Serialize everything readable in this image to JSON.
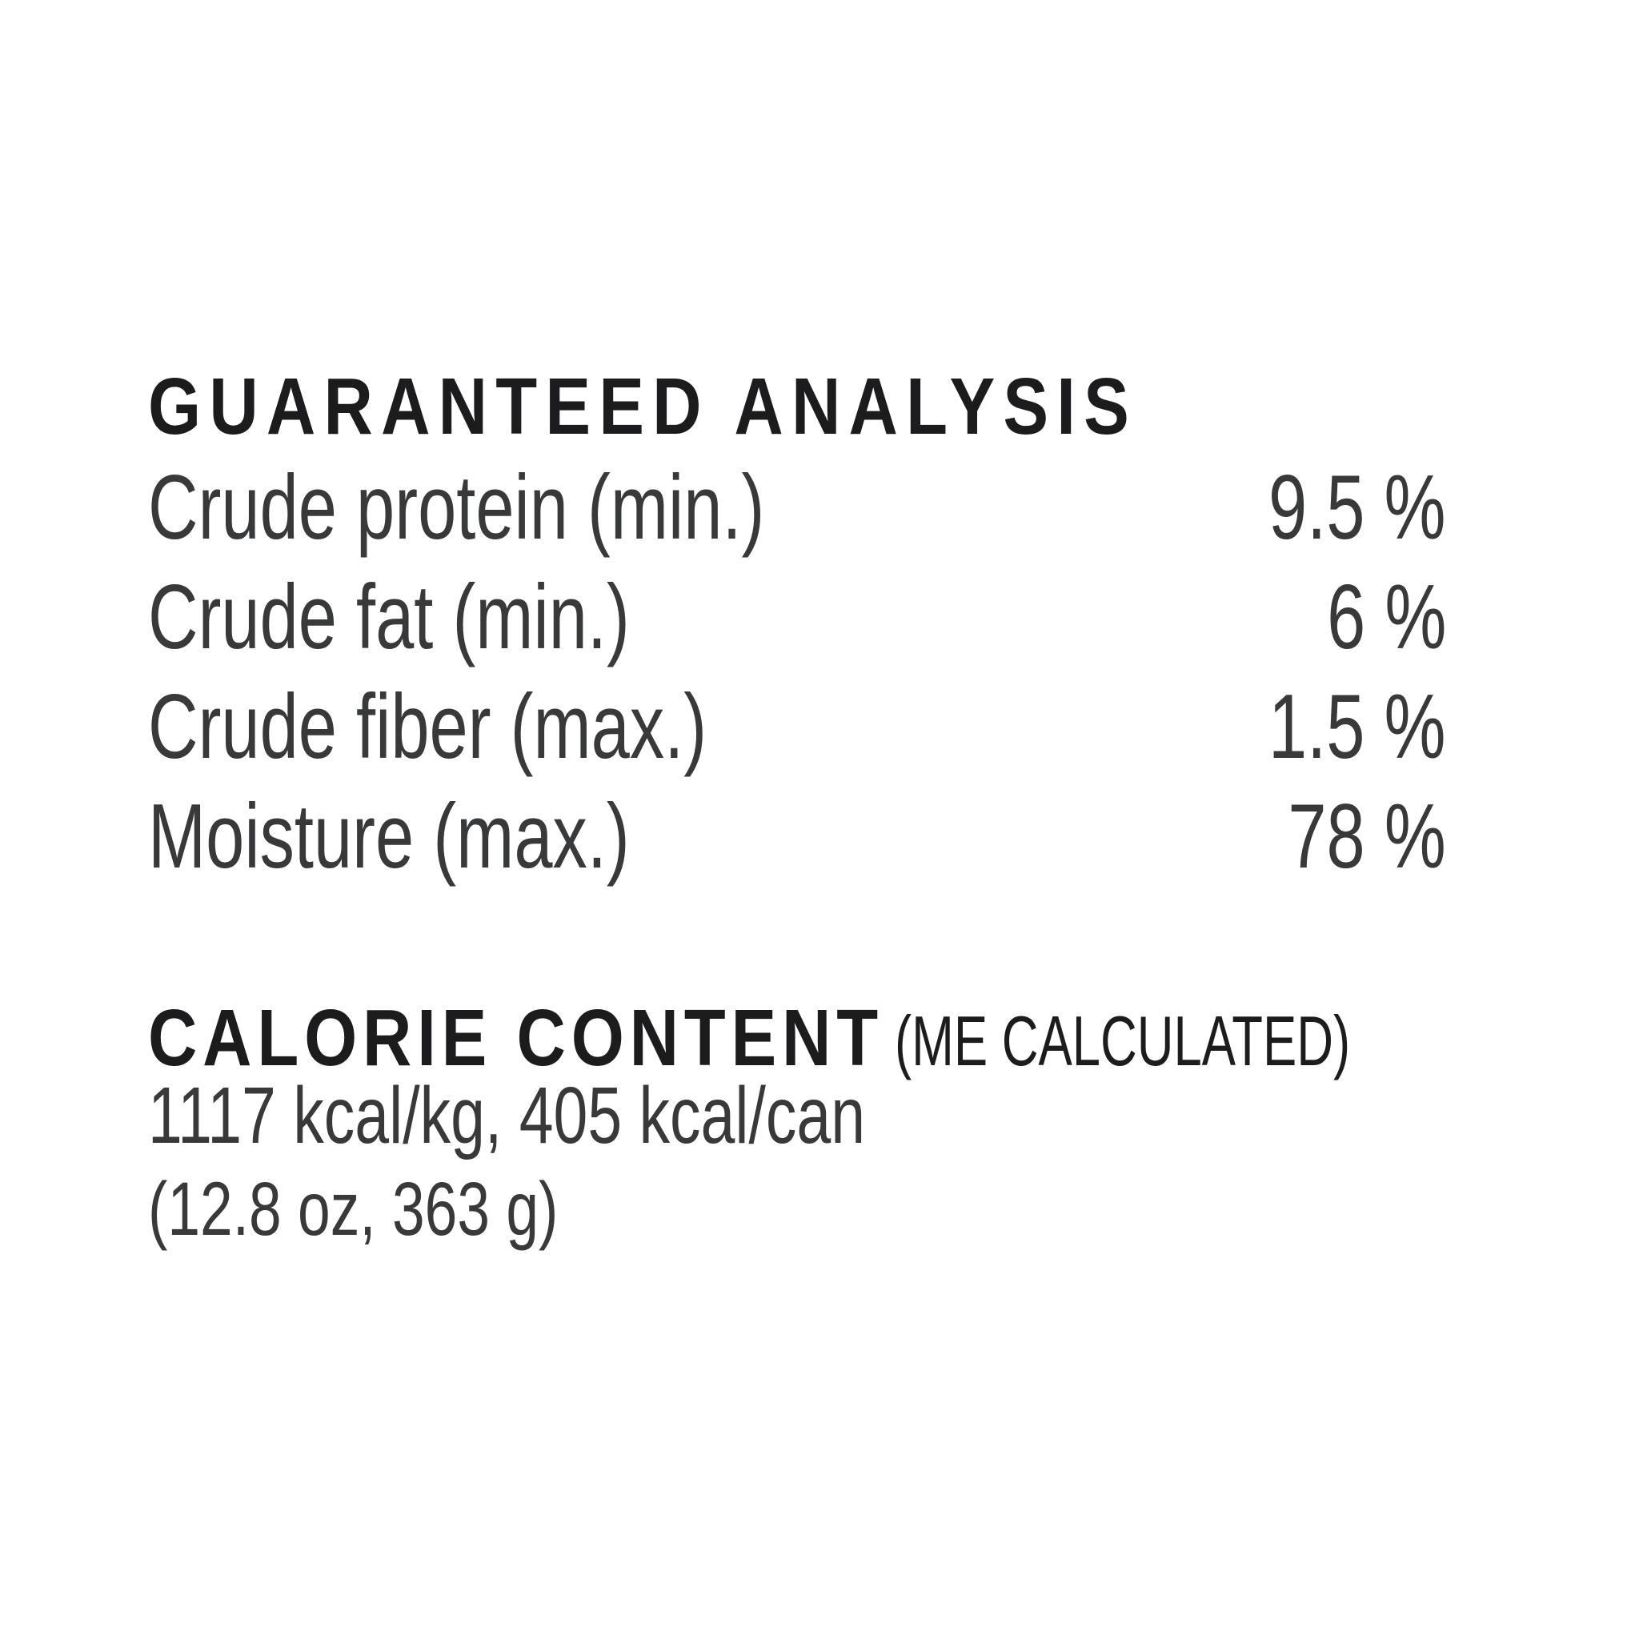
{
  "colors": {
    "background": "#ffffff",
    "heading": "#1c1c1e",
    "body": "#38393b"
  },
  "guaranteed_analysis": {
    "title": "GUARANTEED ANALYSIS",
    "rows": [
      {
        "label": "Crude protein (min.)",
        "value": "9.5 %"
      },
      {
        "label": "Crude fat (min.)",
        "value": "6 %"
      },
      {
        "label": "Crude fiber (max.)",
        "value": "1.5 %"
      },
      {
        "label": "Moisture (max.)",
        "value": "78 %"
      }
    ]
  },
  "calorie_content": {
    "title": "CALORIE CONTENT",
    "method_note": "(ME CALCULATED)",
    "energy_line": "1117 kcal/kg, 405 kcal/can",
    "can_size_line": "(12.8 oz, 363 g)"
  }
}
